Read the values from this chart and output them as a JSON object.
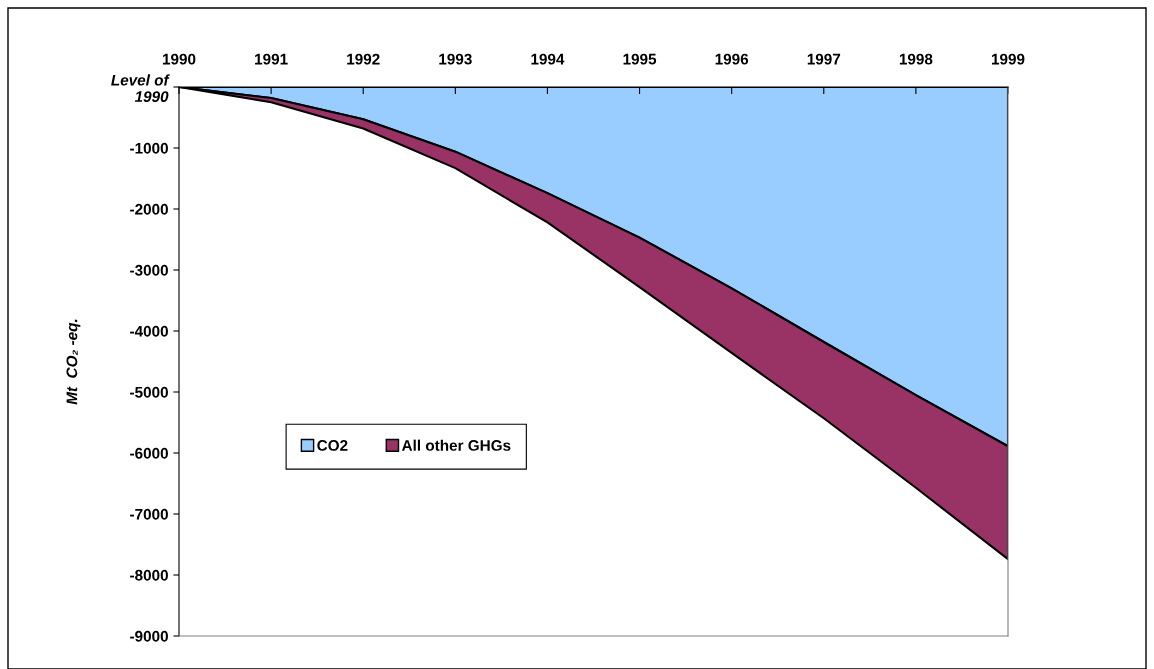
{
  "chart_data": {
    "type": "area",
    "stacked": true,
    "ylabel": "Mt  CO₂ -eq.",
    "categories": [
      "1990",
      "1991",
      "1992",
      "1993",
      "1994",
      "1995",
      "1996",
      "1997",
      "1998",
      "1999"
    ],
    "series": [
      {
        "name": "CO2",
        "color": "#99ccff",
        "values": [
          0,
          -180,
          -530,
          -1060,
          -1740,
          -2470,
          -3300,
          -4180,
          -5050,
          -5890
        ]
      },
      {
        "name": "All other GHGs",
        "color": "#993366",
        "values": [
          0,
          -70,
          -150,
          -270,
          -480,
          -810,
          -1060,
          -1250,
          -1520,
          -1850
        ]
      }
    ],
    "ylim": [
      -9000,
      0
    ],
    "yticks": [
      {
        "value": 0,
        "label": "Level of\n1990"
      },
      -1000,
      -2000,
      -3000,
      -4000,
      -5000,
      -6000,
      -7000,
      -8000,
      -9000
    ],
    "grid": false,
    "legend": "bottom left"
  }
}
